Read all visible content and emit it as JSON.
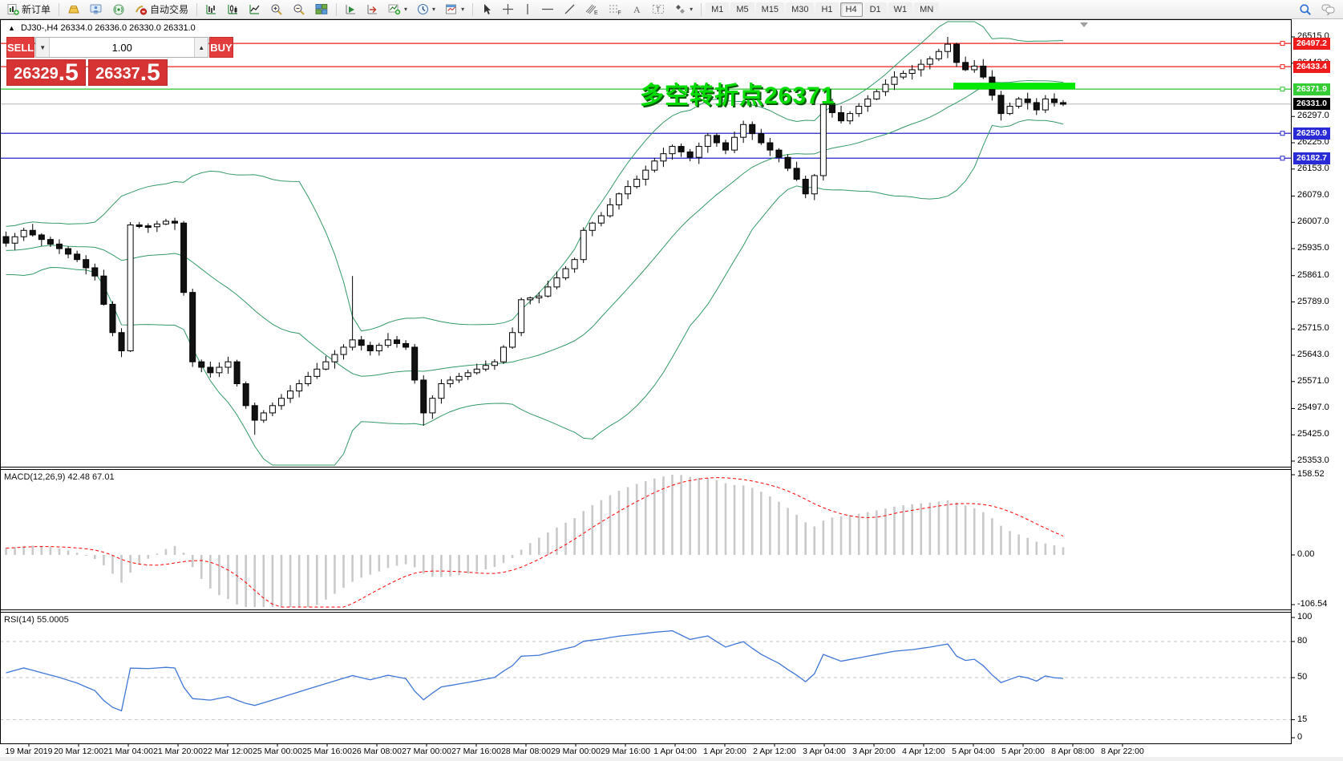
{
  "toolbar": {
    "new_order_label": "新订单",
    "auto_trading_label": "自动交易",
    "timeframes": [
      "M1",
      "M5",
      "M15",
      "M30",
      "H1",
      "H4",
      "D1",
      "W1",
      "MN"
    ],
    "active_timeframe": "H4"
  },
  "quote_panel": {
    "collapse_marker": "▲",
    "symbol_period": "DJ30-,H4",
    "ohlc_line": "26334.0 26336.0 26330.0 26331.0",
    "sell_label": "SELL",
    "buy_label": "BUY",
    "volume": "1.00",
    "sell_price_int": "26329",
    "sell_price_frac": ".5",
    "buy_price_int": "26337",
    "buy_price_frac": ".5"
  },
  "annotation": {
    "text": "多空转折点26371",
    "color": "#00dc00"
  },
  "main_chart": {
    "axis_ticks": [
      "26515.0",
      "26443.0",
      "26297.0",
      "26225.0",
      "26153.0",
      "26079.0",
      "26007.0",
      "25935.0",
      "25861.0",
      "25789.0",
      "25715.0",
      "25643.0",
      "25571.0",
      "25497.0",
      "25425.0",
      "25353.0"
    ],
    "levels": [
      {
        "price": 26497.2,
        "color": "#ee1c1c",
        "badge": "#ee1c1c",
        "kind": "resistance"
      },
      {
        "price": 26433.4,
        "color": "#ee1c1c",
        "badge": "#ee1c1c",
        "kind": "resistance"
      },
      {
        "price": 26371.9,
        "color": "#2cc42c",
        "badge": "#35cc35",
        "kind": "pivot"
      },
      {
        "price": 26331.0,
        "color": "#b6b6b6",
        "badge": "#000000",
        "kind": "current-price"
      },
      {
        "price": 26250.9,
        "color": "#2525cc",
        "badge": "#2a2ad6",
        "kind": "support"
      },
      {
        "price": 26182.7,
        "color": "#2525cc",
        "badge": "#2a2ad6",
        "kind": "support"
      }
    ],
    "highlight_segment": {
      "price": 26371.9,
      "from_bar": 107,
      "to_bar": 120,
      "color": "#00e800"
    }
  },
  "macd_pane": {
    "label": "MACD(12,26,9) 42.48 67.01",
    "axis": [
      "158.52",
      "0.00",
      "-106.54"
    ],
    "hist_color": "#c9c9c9",
    "signal_color": "#ff0000"
  },
  "rsi_pane": {
    "label": "RSI(14) 55.0005",
    "axis": [
      "100",
      "80",
      "50",
      "15",
      "0"
    ],
    "level_lines": [
      80,
      50,
      15
    ],
    "line_color": "#3f76d6"
  },
  "time_axis": [
    "19 Mar 2019",
    "20 Mar 12:00",
    "21 Mar 04:00",
    "21 Mar 20:00",
    "22 Mar 12:00",
    "25 Mar 00:00",
    "25 Mar 16:00",
    "26 Mar 08:00",
    "27 Mar 00:00",
    "27 Mar 16:00",
    "28 Mar 08:00",
    "29 Mar 00:00",
    "29 Mar 16:00",
    "1 Apr 04:00",
    "1 Apr 20:00",
    "2 Apr 12:00",
    "3 Apr 04:00",
    "3 Apr 20:00",
    "4 Apr 12:00",
    "5 Apr 04:00",
    "5 Apr 20:00",
    "8 Apr 08:00",
    "8 Apr 22:00"
  ],
  "chart_data": {
    "type": "candlestick",
    "symbol": "DJ30-",
    "timeframe": "H4",
    "bars": 120,
    "visible_price_range": [
      25353.0,
      26515.0
    ],
    "bollinger_color": "#339966",
    "close_anchors": [
      [
        0,
        25950
      ],
      [
        2,
        25985
      ],
      [
        4,
        25960
      ],
      [
        6,
        25935
      ],
      [
        8,
        25905
      ],
      [
        10,
        25860
      ],
      [
        12,
        25705
      ],
      [
        13,
        25655
      ],
      [
        14,
        26000
      ],
      [
        16,
        25995
      ],
      [
        18,
        26010
      ],
      [
        19,
        26005
      ],
      [
        21,
        25625
      ],
      [
        23,
        25595
      ],
      [
        25,
        25625
      ],
      [
        27,
        25505
      ],
      [
        28,
        25465
      ],
      [
        29,
        25485
      ],
      [
        31,
        25525
      ],
      [
        33,
        25565
      ],
      [
        35,
        25605
      ],
      [
        37,
        25645
      ],
      [
        39,
        25685
      ],
      [
        41,
        25655
      ],
      [
        43,
        25685
      ],
      [
        45,
        25665
      ],
      [
        47,
        25485
      ],
      [
        49,
        25565
      ],
      [
        51,
        25585
      ],
      [
        53,
        25605
      ],
      [
        55,
        25625
      ],
      [
        57,
        25705
      ],
      [
        58,
        25795
      ],
      [
        60,
        25805
      ],
      [
        62,
        25855
      ],
      [
        64,
        25905
      ],
      [
        65,
        25985
      ],
      [
        67,
        26025
      ],
      [
        69,
        26085
      ],
      [
        71,
        26125
      ],
      [
        73,
        26175
      ],
      [
        75,
        26215
      ],
      [
        77,
        26185
      ],
      [
        79,
        26245
      ],
      [
        81,
        26205
      ],
      [
        83,
        26275
      ],
      [
        85,
        26225
      ],
      [
        87,
        26185
      ],
      [
        89,
        26125
      ],
      [
        90,
        26085
      ],
      [
        91,
        26135
      ],
      [
        92,
        26330
      ],
      [
        94,
        26285
      ],
      [
        96,
        26325
      ],
      [
        98,
        26365
      ],
      [
        100,
        26405
      ],
      [
        102,
        26425
      ],
      [
        104,
        26455
      ],
      [
        106,
        26495
      ],
      [
        107,
        26445
      ],
      [
        108,
        26425
      ],
      [
        109,
        26435
      ],
      [
        110,
        26405
      ],
      [
        111,
        26355
      ],
      [
        112,
        26305
      ],
      [
        113,
        26325
      ],
      [
        114,
        26345
      ],
      [
        115,
        26335
      ],
      [
        116,
        26315
      ],
      [
        117,
        26345
      ],
      [
        118,
        26335
      ],
      [
        119,
        26331
      ]
    ],
    "wick_extremes": [
      {
        "bar": 106,
        "high": 26515
      },
      {
        "bar": 28,
        "low": 25425
      },
      {
        "bar": 47,
        "low": 25450
      },
      {
        "bar": 39,
        "high": 25860
      }
    ]
  }
}
